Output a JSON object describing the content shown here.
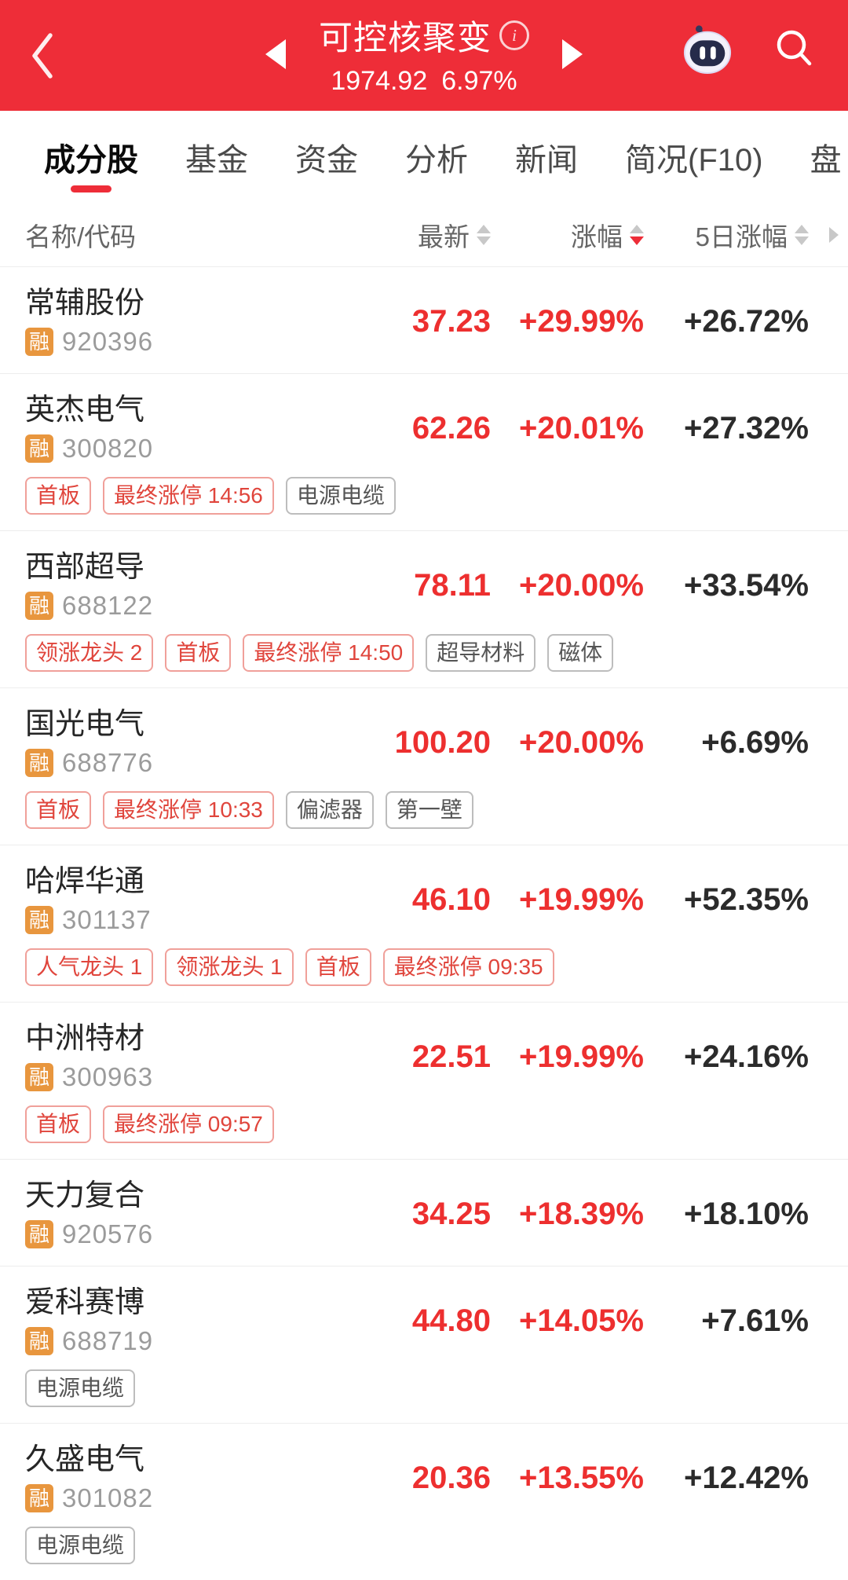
{
  "header": {
    "title": "可控核聚变",
    "index_value": "1974.92",
    "index_change": "6.97%",
    "accent_color": "#ee2d38"
  },
  "tabs": [
    {
      "label": "成分股",
      "active": true
    },
    {
      "label": "基金",
      "active": false
    },
    {
      "label": "资金",
      "active": false
    },
    {
      "label": "分析",
      "active": false
    },
    {
      "label": "新闻",
      "active": false
    },
    {
      "label": "简况(F10)",
      "active": false
    },
    {
      "label": "盘",
      "active": false
    }
  ],
  "table": {
    "columns": [
      {
        "label": "名称/代码",
        "sortable": false,
        "sort": "none"
      },
      {
        "label": "最新",
        "sortable": true,
        "sort": "none"
      },
      {
        "label": "涨幅",
        "sortable": true,
        "sort": "desc"
      },
      {
        "label": "5日涨幅",
        "sortable": true,
        "sort": "none"
      }
    ],
    "rows": [
      {
        "name": "常辅股份",
        "badge": "融",
        "code": "920396",
        "price": "37.23",
        "change": "+29.99%",
        "change5d": "+26.72%",
        "tags": []
      },
      {
        "name": "英杰电气",
        "badge": "融",
        "code": "300820",
        "price": "62.26",
        "change": "+20.01%",
        "change5d": "+27.32%",
        "tags": [
          {
            "text": "首板",
            "type": "red"
          },
          {
            "text": "最终涨停 14:56",
            "type": "red"
          },
          {
            "text": "电源电缆",
            "type": "gray"
          }
        ]
      },
      {
        "name": "西部超导",
        "badge": "融",
        "code": "688122",
        "price": "78.11",
        "change": "+20.00%",
        "change5d": "+33.54%",
        "tags": [
          {
            "text": "领涨龙头 2",
            "type": "red"
          },
          {
            "text": "首板",
            "type": "red"
          },
          {
            "text": "最终涨停 14:50",
            "type": "red"
          },
          {
            "text": "超导材料",
            "type": "gray"
          },
          {
            "text": "磁体",
            "type": "gray"
          }
        ]
      },
      {
        "name": "国光电气",
        "badge": "融",
        "code": "688776",
        "price": "100.20",
        "change": "+20.00%",
        "change5d": "+6.69%",
        "tags": [
          {
            "text": "首板",
            "type": "red"
          },
          {
            "text": "最终涨停 10:33",
            "type": "red"
          },
          {
            "text": "偏滤器",
            "type": "gray"
          },
          {
            "text": "第一壁",
            "type": "gray"
          }
        ]
      },
      {
        "name": "哈焊华通",
        "badge": "融",
        "code": "301137",
        "price": "46.10",
        "change": "+19.99%",
        "change5d": "+52.35%",
        "tags": [
          {
            "text": "人气龙头 1",
            "type": "red"
          },
          {
            "text": "领涨龙头 1",
            "type": "red"
          },
          {
            "text": "首板",
            "type": "red"
          },
          {
            "text": "最终涨停 09:35",
            "type": "red"
          }
        ]
      },
      {
        "name": "中洲特材",
        "badge": "融",
        "code": "300963",
        "price": "22.51",
        "change": "+19.99%",
        "change5d": "+24.16%",
        "tags": [
          {
            "text": "首板",
            "type": "red"
          },
          {
            "text": "最终涨停 09:57",
            "type": "red"
          }
        ]
      },
      {
        "name": "天力复合",
        "badge": "融",
        "code": "920576",
        "price": "34.25",
        "change": "+18.39%",
        "change5d": "+18.10%",
        "tags": []
      },
      {
        "name": "爱科赛博",
        "badge": "融",
        "code": "688719",
        "price": "44.80",
        "change": "+14.05%",
        "change5d": "+7.61%",
        "tags": [
          {
            "text": "电源电缆",
            "type": "gray"
          }
        ]
      },
      {
        "name": "久盛电气",
        "badge": "融",
        "code": "301082",
        "price": "20.36",
        "change": "+13.55%",
        "change5d": "+12.42%",
        "tags": [
          {
            "text": "电源电缆",
            "type": "gray"
          }
        ]
      }
    ]
  }
}
